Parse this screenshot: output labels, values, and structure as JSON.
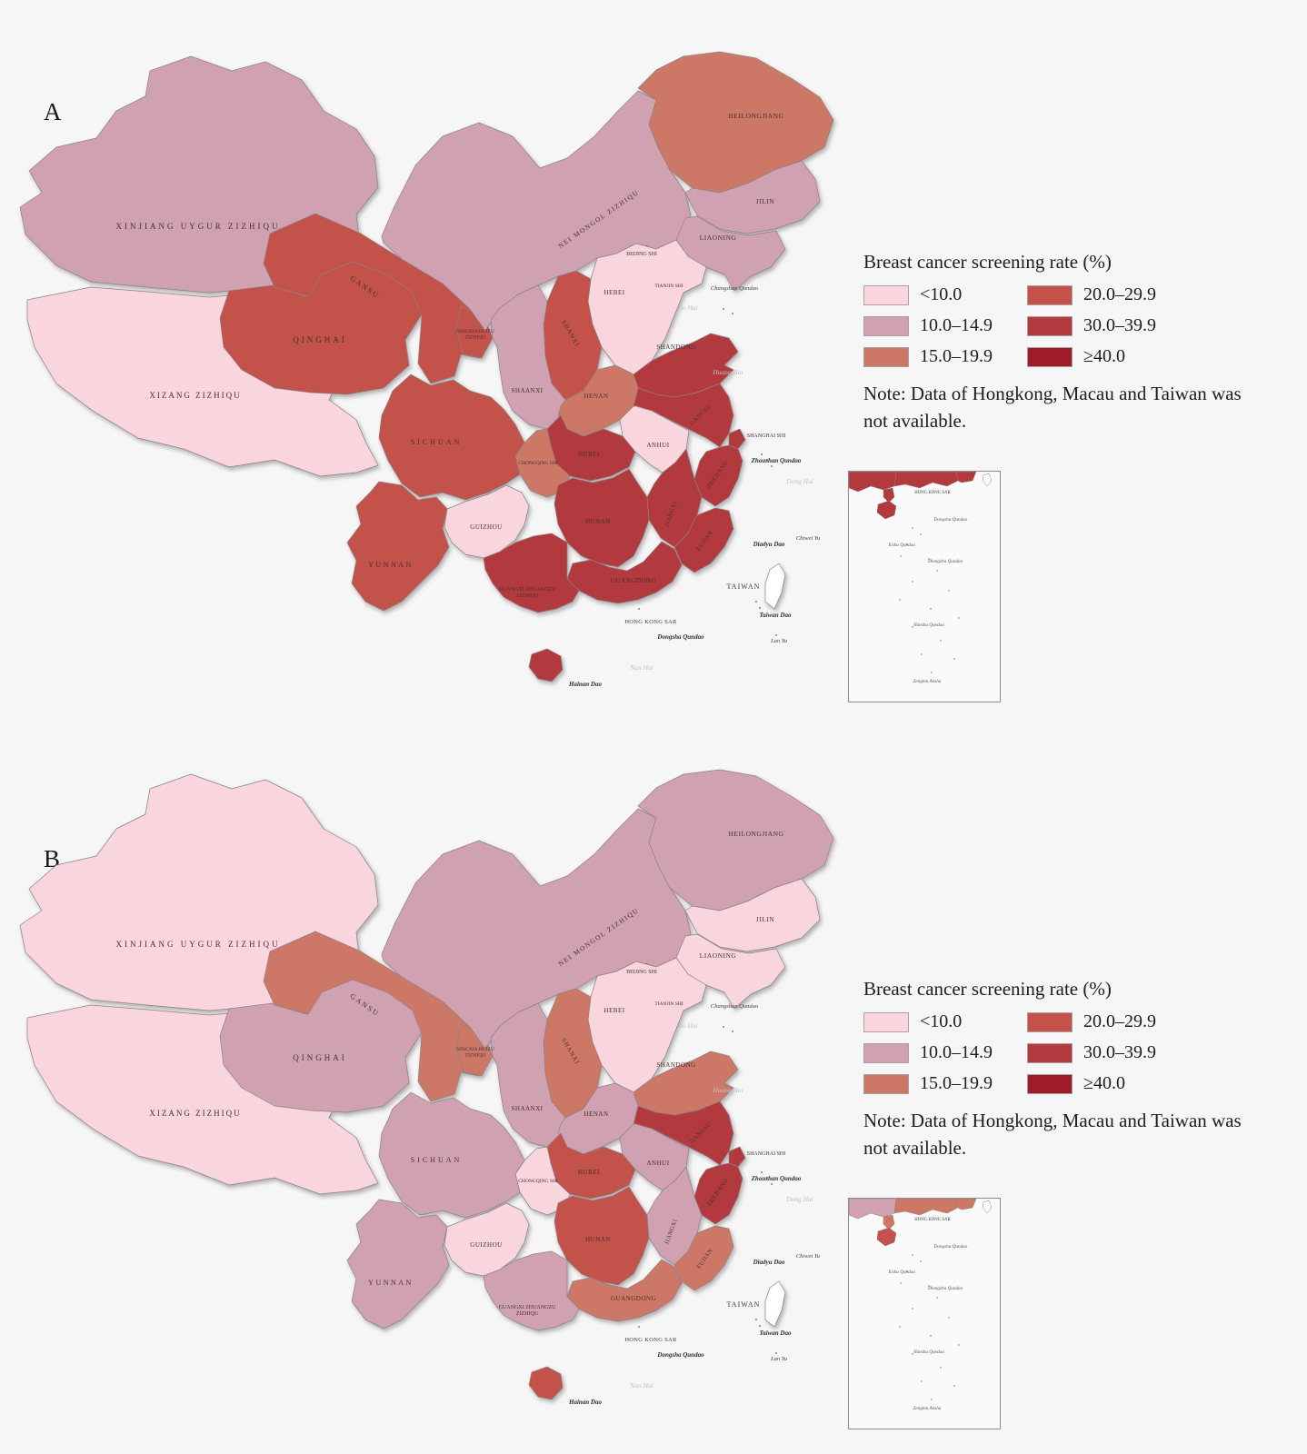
{
  "figure": {
    "panel_a_letter": "A",
    "panel_b_letter": "B"
  },
  "legend": {
    "title": "Breast cancer screening rate (%)",
    "items": [
      "<10.0",
      "10.0–14.9",
      "15.0–19.9",
      "20.0–29.9",
      "30.0–39.9",
      "≥40.0"
    ],
    "note": "Note: Data of Hongkong, Macau and Taiwan was not available."
  },
  "palette": {
    "<10.0": "#f9d6de",
    "10.0–14.9": "#d0a2b1",
    "15.0–19.9": "#cd7767",
    "20.0–29.9": "#c3524a",
    "30.0–39.9": "#b23a3e",
    "≥40.0": "#9d1c28",
    "no_data": "#ffffff"
  },
  "provinces": [
    {
      "id": "xinjiang",
      "name": "XINJIANG   UYGUR   ZIZHIQU",
      "a": "10.0–14.9",
      "b": "<10.0"
    },
    {
      "id": "xizang",
      "name": "XIZANG   ZIZHIQU",
      "a": "<10.0",
      "b": "<10.0"
    },
    {
      "id": "qinghai",
      "name": "QINGHAI",
      "a": "20.0–29.9",
      "b": "10.0–14.9"
    },
    {
      "id": "gansu",
      "name": "GANSU",
      "a": "20.0–29.9",
      "b": "15.0–19.9"
    },
    {
      "id": "ningxia",
      "name": "NINGXIA HUIZU\nZIZHIQU",
      "a": "20.0–29.9",
      "b": "15.0–19.9"
    },
    {
      "id": "neimenggu",
      "name": "NEI MONGOL ZIZHIQU",
      "a": "10.0–14.9",
      "b": "10.0–14.9"
    },
    {
      "id": "heilongjiang",
      "name": "HEILONGJIANG",
      "a": "15.0–19.9",
      "b": "10.0–14.9"
    },
    {
      "id": "jilin",
      "name": "JILIN",
      "a": "10.0–14.9",
      "b": "<10.0"
    },
    {
      "id": "liaoning",
      "name": "LIAONING",
      "a": "10.0–14.9",
      "b": "<10.0"
    },
    {
      "id": "beijing",
      "name": "BEIJING SHI",
      "a": "≥40.0",
      "b": "≥40.0"
    },
    {
      "id": "tianjin",
      "name": "TIANJIN SHI",
      "a": "<10.0",
      "b": "<10.0"
    },
    {
      "id": "hebei",
      "name": "HEBEI",
      "a": "<10.0",
      "b": "<10.0"
    },
    {
      "id": "shanxi",
      "name": "SHANXI",
      "a": "20.0–29.9",
      "b": "15.0–19.9"
    },
    {
      "id": "shaanxi",
      "name": "SHAANXI",
      "a": "10.0–14.9",
      "b": "10.0–14.9"
    },
    {
      "id": "shandong",
      "name": "SHANDONG",
      "a": "30.0–39.9",
      "b": "15.0–19.9"
    },
    {
      "id": "henan",
      "name": "HENAN",
      "a": "15.0–19.9",
      "b": "10.0–14.9"
    },
    {
      "id": "jiangsu",
      "name": "JIANGSU",
      "a": "30.0–39.9",
      "b": "30.0–39.9"
    },
    {
      "id": "shanghai",
      "name": "SHANGHAI SHI",
      "a": "30.0–39.9",
      "b": "30.0–39.9"
    },
    {
      "id": "zhejiang",
      "name": "ZHEJIANG",
      "a": "30.0–39.9",
      "b": "30.0–39.9"
    },
    {
      "id": "anhui",
      "name": "ANHUI",
      "a": "<10.0",
      "b": "10.0–14.9"
    },
    {
      "id": "hubei",
      "name": "HUBEI",
      "a": "30.0–39.9",
      "b": "20.0–29.9"
    },
    {
      "id": "chongqing",
      "name": "CHONGQING SHI",
      "a": "15.0–19.9",
      "b": "<10.0"
    },
    {
      "id": "sichuan",
      "name": "SICHUAN",
      "a": "20.0–29.9",
      "b": "10.0–14.9"
    },
    {
      "id": "hunan",
      "name": "HUNAN",
      "a": "30.0–39.9",
      "b": "20.0–29.9"
    },
    {
      "id": "jiangxi",
      "name": "JIANGXI",
      "a": "30.0–39.9",
      "b": "10.0–14.9"
    },
    {
      "id": "fujian",
      "name": "FUJIAN",
      "a": "30.0–39.9",
      "b": "15.0–19.9"
    },
    {
      "id": "guangdong",
      "name": "GUANGDONG",
      "a": "30.0–39.9",
      "b": "15.0–19.9"
    },
    {
      "id": "guangxi",
      "name": "GUANGXI ZHUANGZU\nZIZHIQU",
      "a": "30.0–39.9",
      "b": "10.0–14.9"
    },
    {
      "id": "guizhou",
      "name": "GUIZHOU",
      "a": "<10.0",
      "b": "<10.0"
    },
    {
      "id": "yunnan",
      "name": "YUNNAN",
      "a": "20.0–29.9",
      "b": "10.0–14.9"
    },
    {
      "id": "hainan",
      "name": "",
      "a": "30.0–39.9",
      "b": "20.0–29.9"
    },
    {
      "id": "taiwan",
      "name": "",
      "a": "no_data",
      "b": "no_data"
    }
  ],
  "sea_labels": [
    {
      "id": "changshan",
      "text": "Changshan Qundao",
      "kind": "isl"
    },
    {
      "id": "bohai",
      "text": "Bo Hai",
      "kind": "sea"
    },
    {
      "id": "huanghai",
      "text": "Huang Hai",
      "kind": "sea"
    },
    {
      "id": "zhoushan",
      "text": "Zhoushan Qundao",
      "kind": "islb"
    },
    {
      "id": "donghai",
      "text": "Dong Hai",
      "kind": "sea"
    },
    {
      "id": "diaoyu",
      "text": "Diaoyu Dao",
      "kind": "islb"
    },
    {
      "id": "chiwei",
      "text": "Chiwei Yu",
      "kind": "isl"
    },
    {
      "id": "taiwanlbl",
      "text": "TAIWAN",
      "kind": "prov"
    },
    {
      "id": "taiwandao",
      "text": "Taiwan Dao",
      "kind": "islb"
    },
    {
      "id": "lanyu",
      "text": "Lan Yu",
      "kind": "isl"
    },
    {
      "id": "hk",
      "text": "HONG KONG SAR",
      "kind": "provs"
    },
    {
      "id": "dongsha",
      "text": "Dongsha Qundao",
      "kind": "islb"
    },
    {
      "id": "nanhai",
      "text": "Nan Hai",
      "kind": "sea"
    },
    {
      "id": "hainandao",
      "text": "Hainan Dao",
      "kind": "islb"
    }
  ],
  "inset_labels": [
    {
      "id": "ihk",
      "text": "HONG KONG SAR"
    },
    {
      "id": "idongsha",
      "text": "Dongsha Qundao"
    },
    {
      "id": "ixisha",
      "text": "Xisha Qundao"
    },
    {
      "id": "izhongsha",
      "text": "Zhongsha Qundao"
    },
    {
      "id": "inansha",
      "text": "Nansha Qundao"
    },
    {
      "id": "izengmu",
      "text": "Zengmu Ansha"
    }
  ]
}
